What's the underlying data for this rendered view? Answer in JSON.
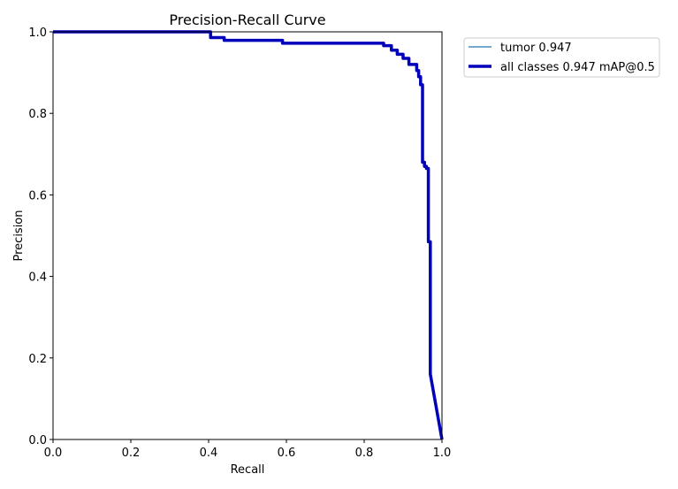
{
  "chart_data": {
    "type": "line",
    "title": "Precision-Recall Curve",
    "xlabel": "Recall",
    "ylabel": "Precision",
    "xlim": [
      0,
      1
    ],
    "ylim": [
      0,
      1
    ],
    "x_ticks": [
      "0.0",
      "0.2",
      "0.4",
      "0.6",
      "0.8",
      "1.0"
    ],
    "y_ticks": [
      "0.0",
      "0.2",
      "0.4",
      "0.6",
      "0.8",
      "1.0"
    ],
    "grid": false,
    "legend_position": "outside-top-right",
    "series": [
      {
        "name": "tumor 0.947",
        "color": "#1f77b4",
        "style": "thin",
        "x": [
          0,
          0.405,
          0.405,
          0.44,
          0.44,
          0.59,
          0.59,
          0.85,
          0.85,
          0.87,
          0.87,
          0.885,
          0.885,
          0.9,
          0.9,
          0.915,
          0.915,
          0.935,
          0.935,
          0.94,
          0.94,
          0.945,
          0.945,
          0.95,
          0.95,
          0.955,
          0.955,
          0.96,
          0.96,
          0.965,
          0.965,
          0.97,
          0.97,
          1.0
        ],
        "y": [
          1.0,
          1.0,
          0.986,
          0.986,
          0.979,
          0.979,
          0.972,
          0.972,
          0.966,
          0.966,
          0.955,
          0.955,
          0.945,
          0.945,
          0.935,
          0.935,
          0.92,
          0.92,
          0.905,
          0.905,
          0.89,
          0.89,
          0.87,
          0.87,
          0.68,
          0.68,
          0.67,
          0.67,
          0.665,
          0.665,
          0.485,
          0.485,
          0.16,
          0.0
        ]
      },
      {
        "name": "all classes 0.947 mAP@0.5",
        "color": "#0000bb",
        "style": "thick",
        "x": [
          0,
          0.405,
          0.405,
          0.44,
          0.44,
          0.59,
          0.59,
          0.85,
          0.85,
          0.87,
          0.87,
          0.885,
          0.885,
          0.9,
          0.9,
          0.915,
          0.915,
          0.935,
          0.935,
          0.94,
          0.94,
          0.945,
          0.945,
          0.95,
          0.95,
          0.955,
          0.955,
          0.96,
          0.96,
          0.965,
          0.965,
          0.97,
          0.97,
          1.0
        ],
        "y": [
          1.0,
          1.0,
          0.986,
          0.986,
          0.979,
          0.979,
          0.972,
          0.972,
          0.966,
          0.966,
          0.955,
          0.955,
          0.945,
          0.945,
          0.935,
          0.935,
          0.92,
          0.92,
          0.905,
          0.905,
          0.89,
          0.89,
          0.87,
          0.87,
          0.68,
          0.68,
          0.67,
          0.67,
          0.665,
          0.665,
          0.485,
          0.485,
          0.16,
          0.0
        ]
      }
    ]
  }
}
